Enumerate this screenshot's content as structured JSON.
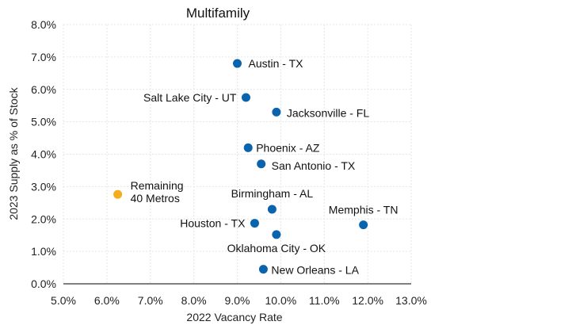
{
  "chart_data": {
    "type": "scatter",
    "title": "Multifamily",
    "xlabel": "2022 Vacancy Rate",
    "ylabel": "2023 Supply as % of Stock",
    "xlim": [
      5.0,
      13.0
    ],
    "ylim": [
      0.0,
      8.0
    ],
    "x_ticks": [
      "5.0%",
      "6.0%",
      "7.0%",
      "8.0%",
      "9.0%",
      "10.0%",
      "11.0%",
      "12.0%",
      "13.0%"
    ],
    "y_ticks": [
      "0.0%",
      "1.0%",
      "2.0%",
      "3.0%",
      "4.0%",
      "5.0%",
      "6.0%",
      "7.0%",
      "8.0%"
    ],
    "grid": true,
    "colors": {
      "metro": "#0a64ad",
      "remaining": "#f2ae1c"
    },
    "points": [
      {
        "label": "Austin - TX",
        "x": 9.0,
        "y": 6.8,
        "group": "metro"
      },
      {
        "label": "Salt Lake City - UT",
        "x": 9.2,
        "y": 5.75,
        "group": "metro"
      },
      {
        "label": "Jacksonville - FL",
        "x": 9.9,
        "y": 5.3,
        "group": "metro"
      },
      {
        "label": "Phoenix - AZ",
        "x": 9.25,
        "y": 4.2,
        "group": "metro"
      },
      {
        "label": "San Antonio - TX",
        "x": 9.55,
        "y": 3.7,
        "group": "metro"
      },
      {
        "label": "Birmingham - AL",
        "x": 9.8,
        "y": 2.3,
        "group": "metro"
      },
      {
        "label": "Memphis - TN",
        "x": 11.9,
        "y": 1.82,
        "group": "metro"
      },
      {
        "label": "Houston - TX",
        "x": 9.4,
        "y": 1.87,
        "group": "metro"
      },
      {
        "label": "Oklahoma City - OK",
        "x": 9.9,
        "y": 1.52,
        "group": "metro"
      },
      {
        "label": "New Orleans - LA",
        "x": 9.6,
        "y": 0.45,
        "group": "metro"
      },
      {
        "label": "Remaining\n40 Metros",
        "x": 6.25,
        "y": 2.76,
        "group": "remaining"
      }
    ]
  }
}
